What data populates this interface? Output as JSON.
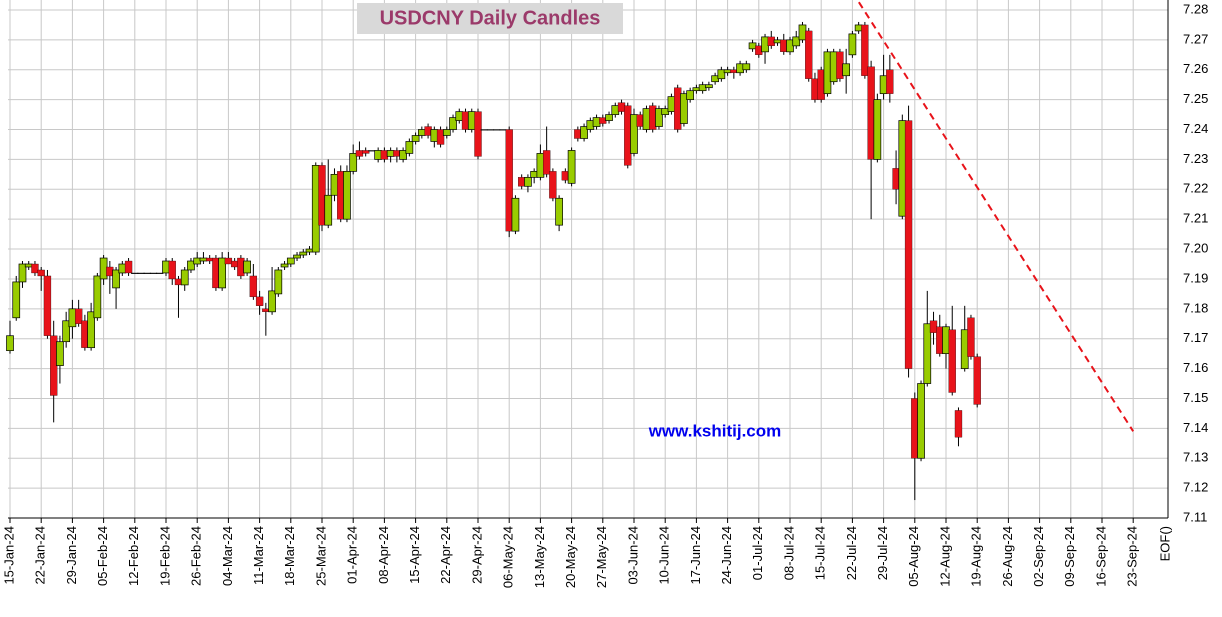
{
  "chart_data": {
    "type": "candlestick",
    "title": "USDCNY Daily Candles",
    "watermark": "www.kshitij.com",
    "x": [
      "2024-01-15",
      "2024-01-16",
      "2024-01-17",
      "2024-01-18",
      "2024-01-19",
      "2024-01-22",
      "2024-01-23",
      "2024-01-24",
      "2024-01-25",
      "2024-01-26",
      "2024-01-29",
      "2024-01-30",
      "2024-01-31",
      "2024-02-01",
      "2024-02-02",
      "2024-02-05",
      "2024-02-06",
      "2024-02-07",
      "2024-02-08",
      "2024-02-09",
      "2024-02-12",
      "2024-02-13",
      "2024-02-14",
      "2024-02-15",
      "2024-02-16",
      "2024-02-19",
      "2024-02-20",
      "2024-02-21",
      "2024-02-22",
      "2024-02-23",
      "2024-02-26",
      "2024-02-27",
      "2024-02-28",
      "2024-02-29",
      "2024-03-01",
      "2024-03-04",
      "2024-03-05",
      "2024-03-06",
      "2024-03-07",
      "2024-03-08",
      "2024-03-11",
      "2024-03-12",
      "2024-03-13",
      "2024-03-14",
      "2024-03-15",
      "2024-03-18",
      "2024-03-19",
      "2024-03-20",
      "2024-03-21",
      "2024-03-22",
      "2024-03-25",
      "2024-03-26",
      "2024-03-27",
      "2024-03-28",
      "2024-03-29",
      "2024-04-01",
      "2024-04-02",
      "2024-04-03",
      "2024-04-04",
      "2024-04-05",
      "2024-04-08",
      "2024-04-09",
      "2024-04-10",
      "2024-04-11",
      "2024-04-12",
      "2024-04-15",
      "2024-04-16",
      "2024-04-17",
      "2024-04-18",
      "2024-04-19",
      "2024-04-22",
      "2024-04-23",
      "2024-04-24",
      "2024-04-25",
      "2024-04-26",
      "2024-04-29",
      "2024-04-30",
      "2024-05-01",
      "2024-05-02",
      "2024-05-03",
      "2024-05-06",
      "2024-05-07",
      "2024-05-08",
      "2024-05-09",
      "2024-05-10",
      "2024-05-13",
      "2024-05-14",
      "2024-05-15",
      "2024-05-16",
      "2024-05-17",
      "2024-05-20",
      "2024-05-21",
      "2024-05-22",
      "2024-05-23",
      "2024-05-24",
      "2024-05-27",
      "2024-05-28",
      "2024-05-29",
      "2024-05-30",
      "2024-05-31",
      "2024-06-03",
      "2024-06-04",
      "2024-06-05",
      "2024-06-06",
      "2024-06-07",
      "2024-06-10",
      "2024-06-11",
      "2024-06-12",
      "2024-06-13",
      "2024-06-14",
      "2024-06-17",
      "2024-06-18",
      "2024-06-19",
      "2024-06-20",
      "2024-06-21",
      "2024-06-24",
      "2024-06-25",
      "2024-06-26",
      "2024-06-27",
      "2024-06-28",
      "2024-07-01",
      "2024-07-02",
      "2024-07-03",
      "2024-07-04",
      "2024-07-05",
      "2024-07-08",
      "2024-07-09",
      "2024-07-10",
      "2024-07-11",
      "2024-07-12",
      "2024-07-15",
      "2024-07-16",
      "2024-07-17",
      "2024-07-18",
      "2024-07-19",
      "2024-07-22",
      "2024-07-23",
      "2024-07-24",
      "2024-07-25",
      "2024-07-26",
      "2024-07-29",
      "2024-07-30",
      "2024-07-31",
      "2024-08-01",
      "2024-08-02",
      "2024-08-05",
      "2024-08-06",
      "2024-08-07",
      "2024-08-08",
      "2024-08-09",
      "2024-08-12",
      "2024-08-13",
      "2024-08-14",
      "2024-08-15",
      "2024-08-16",
      "2024-08-19"
    ],
    "candles": [
      [
        7.166,
        7.176,
        7.165,
        7.171
      ],
      [
        7.177,
        7.191,
        7.176,
        7.189
      ],
      [
        7.189,
        7.196,
        7.187,
        7.195
      ],
      [
        7.194,
        7.196,
        7.193,
        7.195
      ],
      [
        7.195,
        7.196,
        7.191,
        7.192
      ],
      [
        7.193,
        7.194,
        7.186,
        7.191
      ],
      [
        7.191,
        7.193,
        7.17,
        7.171
      ],
      [
        7.171,
        7.176,
        7.142,
        7.151
      ],
      [
        7.161,
        7.171,
        7.155,
        7.169
      ],
      [
        7.169,
        7.179,
        7.167,
        7.176
      ],
      [
        7.174,
        7.183,
        7.17,
        7.18
      ],
      [
        7.18,
        7.183,
        7.174,
        7.175
      ],
      [
        7.176,
        7.178,
        7.166,
        7.167
      ],
      [
        7.167,
        7.182,
        7.166,
        7.179
      ],
      [
        7.177,
        7.192,
        7.176,
        7.191
      ],
      [
        7.19,
        7.198,
        7.188,
        7.197
      ],
      [
        7.194,
        7.196,
        7.185,
        7.191
      ],
      [
        7.187,
        7.194,
        7.18,
        7.193
      ],
      [
        7.192,
        7.196,
        7.191,
        7.195
      ],
      [
        7.196,
        7.197,
        7.191,
        7.192
      ],
      [
        7.192,
        7.192,
        7.192,
        7.192
      ],
      [
        7.192,
        7.192,
        7.192,
        7.192
      ],
      [
        7.192,
        7.192,
        7.192,
        7.192
      ],
      [
        7.192,
        7.192,
        7.192,
        7.192
      ],
      [
        7.192,
        7.192,
        7.192,
        7.192
      ],
      [
        7.192,
        7.197,
        7.191,
        7.196
      ],
      [
        7.196,
        7.197,
        7.188,
        7.19
      ],
      [
        7.19,
        7.191,
        7.177,
        7.188
      ],
      [
        7.188,
        7.194,
        7.186,
        7.193
      ],
      [
        7.193,
        7.197,
        7.192,
        7.196
      ],
      [
        7.195,
        7.199,
        7.194,
        7.197
      ],
      [
        7.196,
        7.199,
        7.195,
        7.197
      ],
      [
        7.197,
        7.198,
        7.195,
        7.196
      ],
      [
        7.197,
        7.198,
        7.186,
        7.187
      ],
      [
        7.187,
        7.199,
        7.186,
        7.197
      ],
      [
        7.197,
        7.199,
        7.195,
        7.195
      ],
      [
        7.196,
        7.197,
        7.193,
        7.194
      ],
      [
        7.197,
        7.198,
        7.19,
        7.191
      ],
      [
        7.192,
        7.197,
        7.191,
        7.196
      ],
      [
        7.191,
        7.195,
        7.183,
        7.184
      ],
      [
        7.184,
        7.186,
        7.178,
        7.181
      ],
      [
        7.18,
        7.182,
        7.171,
        7.179
      ],
      [
        7.179,
        7.194,
        7.178,
        7.186
      ],
      [
        7.185,
        7.194,
        7.184,
        7.193
      ],
      [
        7.194,
        7.196,
        7.193,
        7.195
      ],
      [
        7.195,
        7.197,
        7.194,
        7.197
      ],
      [
        7.197,
        7.199,
        7.196,
        7.198
      ],
      [
        7.198,
        7.2,
        7.197,
        7.199
      ],
      [
        7.199,
        7.201,
        7.198,
        7.2
      ],
      [
        7.199,
        7.229,
        7.198,
        7.228
      ],
      [
        7.228,
        7.229,
        7.206,
        7.208
      ],
      [
        7.208,
        7.23,
        7.207,
        7.218
      ],
      [
        7.218,
        7.227,
        7.216,
        7.225
      ],
      [
        7.226,
        7.228,
        7.209,
        7.21
      ],
      [
        7.21,
        7.228,
        7.209,
        7.226
      ],
      [
        7.226,
        7.235,
        7.225,
        7.232
      ],
      [
        7.233,
        7.236,
        7.23,
        7.231
      ],
      [
        7.233,
        7.234,
        7.231,
        7.232
      ],
      [
        7.233,
        7.233,
        7.233,
        7.233
      ],
      [
        7.23,
        7.234,
        7.229,
        7.233
      ],
      [
        7.233,
        7.234,
        7.229,
        7.23
      ],
      [
        7.231,
        7.234,
        7.229,
        7.233
      ],
      [
        7.233,
        7.234,
        7.229,
        7.231
      ],
      [
        7.23,
        7.234,
        7.229,
        7.233
      ],
      [
        7.232,
        7.237,
        7.231,
        7.236
      ],
      [
        7.236,
        7.239,
        7.235,
        7.238
      ],
      [
        7.238,
        7.241,
        7.237,
        7.24
      ],
      [
        7.241,
        7.242,
        7.237,
        7.238
      ],
      [
        7.236,
        7.241,
        7.234,
        7.24
      ],
      [
        7.24,
        7.241,
        7.234,
        7.235
      ],
      [
        7.238,
        7.241,
        7.237,
        7.24
      ],
      [
        7.24,
        7.245,
        7.239,
        7.244
      ],
      [
        7.243,
        7.247,
        7.242,
        7.246
      ],
      [
        7.246,
        7.247,
        7.239,
        7.24
      ],
      [
        7.24,
        7.247,
        7.239,
        7.246
      ],
      [
        7.246,
        7.247,
        7.23,
        7.231
      ],
      [
        7.24,
        7.24,
        7.24,
        7.24
      ],
      [
        7.24,
        7.24,
        7.24,
        7.24
      ],
      [
        7.24,
        7.24,
        7.24,
        7.24
      ],
      [
        7.24,
        7.24,
        7.24,
        7.24
      ],
      [
        7.24,
        7.241,
        7.204,
        7.206
      ],
      [
        7.206,
        7.218,
        7.205,
        7.217
      ],
      [
        7.224,
        7.225,
        7.22,
        7.221
      ],
      [
        7.221,
        7.225,
        7.219,
        7.224
      ],
      [
        7.224,
        7.227,
        7.222,
        7.226
      ],
      [
        7.224,
        7.235,
        7.223,
        7.232
      ],
      [
        7.233,
        7.241,
        7.224,
        7.225
      ],
      [
        7.226,
        7.227,
        7.216,
        7.217
      ],
      [
        7.208,
        7.218,
        7.206,
        7.217
      ],
      [
        7.226,
        7.227,
        7.222,
        7.223
      ],
      [
        7.222,
        7.234,
        7.221,
        7.233
      ],
      [
        7.24,
        7.241,
        7.236,
        7.237
      ],
      [
        7.237,
        7.242,
        7.236,
        7.241
      ],
      [
        7.24,
        7.244,
        7.239,
        7.243
      ],
      [
        7.241,
        7.245,
        7.24,
        7.244
      ],
      [
        7.244,
        7.245,
        7.241,
        7.242
      ],
      [
        7.243,
        7.246,
        7.242,
        7.245
      ],
      [
        7.245,
        7.249,
        7.244,
        7.248
      ],
      [
        7.249,
        7.25,
        7.245,
        7.246
      ],
      [
        7.248,
        7.249,
        7.227,
        7.228
      ],
      [
        7.232,
        7.247,
        7.231,
        7.245
      ],
      [
        7.245,
        7.246,
        7.24,
        7.241
      ],
      [
        7.24,
        7.248,
        7.239,
        7.247
      ],
      [
        7.248,
        7.249,
        7.239,
        7.24
      ],
      [
        7.241,
        7.248,
        7.24,
        7.247
      ],
      [
        7.245,
        7.248,
        7.244,
        7.247
      ],
      [
        7.246,
        7.252,
        7.245,
        7.251
      ],
      [
        7.254,
        7.255,
        7.239,
        7.24
      ],
      [
        7.242,
        7.253,
        7.241,
        7.252
      ],
      [
        7.25,
        7.254,
        7.249,
        7.253
      ],
      [
        7.253,
        7.255,
        7.252,
        7.254
      ],
      [
        7.253,
        7.256,
        7.252,
        7.255
      ],
      [
        7.254,
        7.256,
        7.253,
        7.255
      ],
      [
        7.256,
        7.259,
        7.255,
        7.258
      ],
      [
        7.257,
        7.261,
        7.256,
        7.26
      ],
      [
        7.259,
        7.261,
        7.258,
        7.26
      ],
      [
        7.26,
        7.261,
        7.257,
        7.259
      ],
      [
        7.259,
        7.263,
        7.258,
        7.262
      ],
      [
        7.26,
        7.263,
        7.259,
        7.262
      ],
      [
        7.267,
        7.27,
        7.266,
        7.269
      ],
      [
        7.268,
        7.269,
        7.264,
        7.265
      ],
      [
        7.266,
        7.272,
        7.262,
        7.271
      ],
      [
        7.271,
        7.273,
        7.267,
        7.268
      ],
      [
        7.269,
        7.271,
        7.268,
        7.27
      ],
      [
        7.27,
        7.272,
        7.265,
        7.266
      ],
      [
        7.266,
        7.271,
        7.265,
        7.27
      ],
      [
        7.268,
        7.273,
        7.267,
        7.271
      ],
      [
        7.27,
        7.276,
        7.269,
        7.275
      ],
      [
        7.273,
        7.274,
        7.256,
        7.257
      ],
      [
        7.257,
        7.259,
        7.249,
        7.25
      ],
      [
        7.26,
        7.261,
        7.249,
        7.25
      ],
      [
        7.252,
        7.267,
        7.251,
        7.266
      ],
      [
        7.256,
        7.267,
        7.255,
        7.266
      ],
      [
        7.266,
        7.267,
        7.256,
        7.257
      ],
      [
        7.258,
        7.267,
        7.252,
        7.262
      ],
      [
        7.265,
        7.273,
        7.264,
        7.272
      ],
      [
        7.273,
        7.276,
        7.272,
        7.275
      ],
      [
        7.275,
        7.276,
        7.257,
        7.258
      ],
      [
        7.261,
        7.263,
        7.21,
        7.23
      ],
      [
        7.23,
        7.252,
        7.229,
        7.25
      ],
      [
        7.252,
        7.265,
        7.25,
        7.258
      ],
      [
        7.26,
        7.265,
        7.249,
        7.252
      ],
      [
        7.227,
        7.233,
        7.215,
        7.22
      ],
      [
        7.211,
        7.245,
        7.21,
        7.243
      ],
      [
        7.243,
        7.248,
        7.157,
        7.16
      ],
      [
        7.15,
        7.152,
        7.116,
        7.13
      ],
      [
        7.13,
        7.156,
        7.129,
        7.155
      ],
      [
        7.155,
        7.186,
        7.154,
        7.175
      ],
      [
        7.176,
        7.179,
        7.168,
        7.172
      ],
      [
        7.174,
        7.178,
        7.164,
        7.165
      ],
      [
        7.165,
        7.175,
        7.16,
        7.174
      ],
      [
        7.173,
        7.181,
        7.151,
        7.152
      ],
      [
        7.146,
        7.147,
        7.134,
        7.137
      ],
      [
        7.16,
        7.181,
        7.159,
        7.173
      ],
      [
        7.177,
        7.178,
        7.163,
        7.164
      ],
      [
        7.164,
        7.165,
        7.147,
        7.148
      ]
    ],
    "up_color": "#99cc00",
    "down_color": "#e8131a",
    "trendline": {
      "x": [
        "2024-07-22",
        "2024-09-23"
      ],
      "y": [
        7.286,
        7.139
      ],
      "color": "#e8131a"
    },
    "ylim": [
      7.11,
      7.28
    ],
    "yticks": [
      7.11,
      7.12,
      7.13,
      7.14,
      7.15,
      7.16,
      7.17,
      7.18,
      7.19,
      {
        "value": 7.2,
        "label": "7.20"
      },
      7.21,
      7.22,
      7.23,
      7.24,
      7.25,
      7.26,
      7.27,
      7.28
    ],
    "xticks": [
      {
        "value": "2024-01-15",
        "label": "15-Jan-24"
      },
      {
        "value": "2024-01-22",
        "label": "22-Jan-24"
      },
      {
        "value": "2024-01-29",
        "label": "29-Jan-24"
      },
      {
        "value": "2024-02-05",
        "label": "05-Feb-24"
      },
      {
        "value": "2024-02-12",
        "label": "12-Feb-24"
      },
      {
        "value": "2024-02-19",
        "label": "19-Feb-24"
      },
      {
        "value": "2024-02-26",
        "label": "26-Feb-24"
      },
      {
        "value": "2024-03-04",
        "label": "04-Mar-24"
      },
      {
        "value": "2024-03-11",
        "label": "11-Mar-24"
      },
      {
        "value": "2024-03-18",
        "label": "18-Mar-24"
      },
      {
        "value": "2024-03-25",
        "label": "25-Mar-24"
      },
      {
        "value": "2024-04-01",
        "label": "01-Apr-24"
      },
      {
        "value": "2024-04-08",
        "label": "08-Apr-24"
      },
      {
        "value": "2024-04-15",
        "label": "15-Apr-24"
      },
      {
        "value": "2024-04-22",
        "label": "22-Apr-24"
      },
      {
        "value": "2024-04-29",
        "label": "29-Apr-24"
      },
      {
        "value": "2024-05-06",
        "label": "06-May-24"
      },
      {
        "value": "2024-05-13",
        "label": "13-May-24"
      },
      {
        "value": "2024-05-20",
        "label": "20-May-24"
      },
      {
        "value": "2024-05-27",
        "label": "27-May-24"
      },
      {
        "value": "2024-06-03",
        "label": "03-Jun-24"
      },
      {
        "value": "2024-06-10",
        "label": "10-Jun-24"
      },
      {
        "value": "2024-06-17",
        "label": "17-Jun-24"
      },
      {
        "value": "2024-06-24",
        "label": "24-Jun-24"
      },
      {
        "value": "2024-07-01",
        "label": "01-Jul-24"
      },
      {
        "value": "2024-07-08",
        "label": "08-Jul-24"
      },
      {
        "value": "2024-07-15",
        "label": "15-Jul-24"
      },
      {
        "value": "2024-07-22",
        "label": "22-Jul-24"
      },
      {
        "value": "2024-07-29",
        "label": "29-Jul-24"
      },
      {
        "value": "2024-08-05",
        "label": "05-Aug-24"
      },
      {
        "value": "2024-08-12",
        "label": "12-Aug-24"
      },
      {
        "value": "2024-08-19",
        "label": "19-Aug-24"
      },
      {
        "value": "2024-08-26",
        "label": "26-Aug-24"
      },
      {
        "value": "2024-09-02",
        "label": "02-Sep-24"
      },
      {
        "value": "2024-09-09",
        "label": "09-Sep-24"
      },
      {
        "value": "2024-09-16",
        "label": "16-Sep-24"
      },
      {
        "value": "2024-09-23",
        "label": "23-Sep-24"
      }
    ],
    "x_end_label": "EOF()",
    "grid": true
  }
}
